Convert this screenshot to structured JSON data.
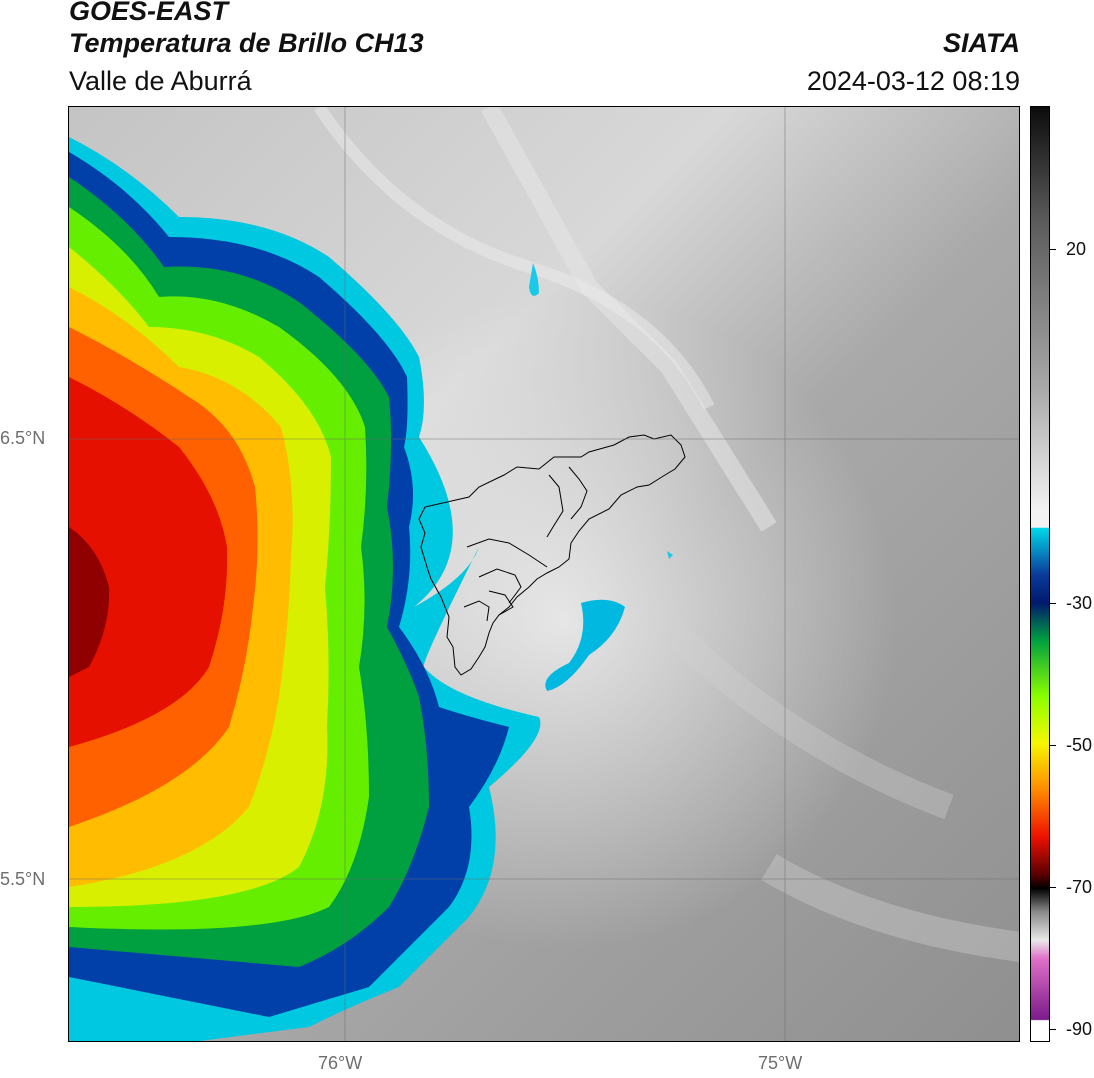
{
  "header": {
    "satellite": "GOES-EAST",
    "product": "Temperatura de Brillo CH13",
    "region": "Valle de Aburrá",
    "brand": "SIATA",
    "timestamp": "2024-03-12 08:19"
  },
  "map": {
    "lat_labels": [
      "6.5°N",
      "5.5°N"
    ],
    "lon_labels": [
      "76°W",
      "75°W"
    ]
  },
  "colorbar": {
    "ticks": [
      "20",
      "-30",
      "-50",
      "-70",
      "-90"
    ],
    "palette": {
      "warm_top": "#0c0c0c",
      "gray_mid": "#a8a8a8",
      "white": "#f2f2f2",
      "cyan": "#00d8e8",
      "blue": "#0a3a9a",
      "navy": "#001a6e",
      "green": "#00c000",
      "lime": "#8cff00",
      "yellow": "#f6f600",
      "orange": "#ff8a00",
      "red": "#ee1000",
      "dark_red": "#5a0000",
      "black": "#000000",
      "pink": "#e070c8",
      "purple": "#7a1a8a"
    }
  }
}
